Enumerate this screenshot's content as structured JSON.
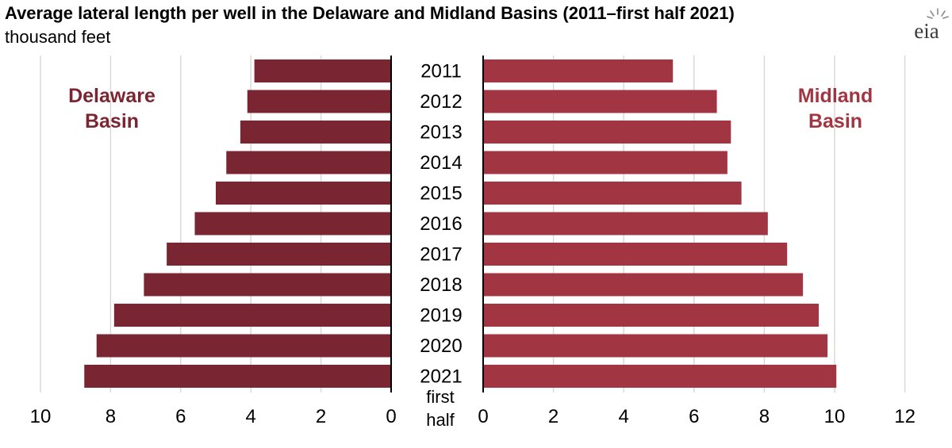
{
  "title": "Average lateral length per well in the Delaware and Midland Basins (2011–first half 2021)",
  "subtitle": "thousand feet",
  "logo_text": "eia",
  "colors": {
    "delaware": "#7a2632",
    "midland": "#a23542",
    "grid": "#d9d9d9",
    "axis": "#000000"
  },
  "chart_data": {
    "type": "bar",
    "categories": [
      "2011",
      "2012",
      "2013",
      "2014",
      "2015",
      "2016",
      "2017",
      "2018",
      "2019",
      "2020",
      "2021"
    ],
    "last_category_note": [
      "first",
      "half"
    ],
    "series": [
      {
        "name": "Delaware Basin",
        "label_lines": [
          "Delaware",
          "Basin"
        ],
        "values": [
          3.9,
          4.1,
          4.3,
          4.7,
          5.0,
          5.6,
          6.4,
          7.05,
          7.9,
          8.4,
          8.75
        ]
      },
      {
        "name": "Midland Basin",
        "label_lines": [
          "Midland",
          "Basin"
        ],
        "values": [
          5.4,
          6.65,
          7.05,
          6.95,
          7.35,
          8.1,
          8.65,
          9.1,
          9.55,
          9.8,
          10.05
        ]
      }
    ],
    "left_axis": {
      "ticks": [
        10,
        8,
        6,
        4,
        2,
        0
      ],
      "range": [
        10,
        0
      ]
    },
    "right_axis": {
      "ticks": [
        0,
        2,
        4,
        6,
        8,
        10,
        12
      ],
      "range": [
        0,
        12
      ]
    },
    "grid": true
  }
}
